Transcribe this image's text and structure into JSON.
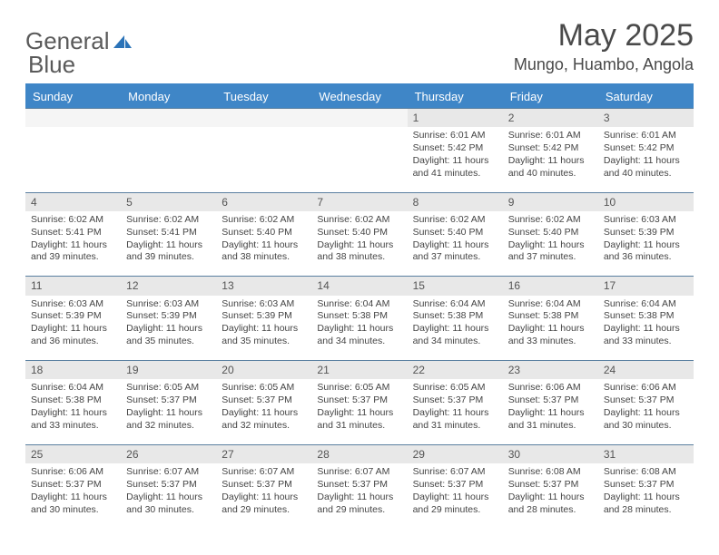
{
  "brand": {
    "word1": "General",
    "word2": "Blue",
    "text_color_gray": "#5a5a5a",
    "text_color_blue": "#2b73b8",
    "icon_color": "#2b73b8"
  },
  "header": {
    "month_title": "May 2025",
    "location": "Mungo, Huambo, Angola",
    "title_color": "#4a4a4a"
  },
  "calendar": {
    "header_bg": "#3f86c7",
    "header_fg": "#ffffff",
    "daynum_bg": "#e8e8e8",
    "cell_border": "#5a7fa0",
    "text_color": "#333333",
    "days": [
      "Sunday",
      "Monday",
      "Tuesday",
      "Wednesday",
      "Thursday",
      "Friday",
      "Saturday"
    ],
    "weeks": [
      {
        "nums": [
          "",
          "",
          "",
          "",
          "1",
          "2",
          "3"
        ],
        "cells": [
          "",
          "",
          "",
          "",
          "Sunrise: 6:01 AM\nSunset: 5:42 PM\nDaylight: 11 hours and 41 minutes.",
          "Sunrise: 6:01 AM\nSunset: 5:42 PM\nDaylight: 11 hours and 40 minutes.",
          "Sunrise: 6:01 AM\nSunset: 5:42 PM\nDaylight: 11 hours and 40 minutes."
        ]
      },
      {
        "nums": [
          "4",
          "5",
          "6",
          "7",
          "8",
          "9",
          "10"
        ],
        "cells": [
          "Sunrise: 6:02 AM\nSunset: 5:41 PM\nDaylight: 11 hours and 39 minutes.",
          "Sunrise: 6:02 AM\nSunset: 5:41 PM\nDaylight: 11 hours and 39 minutes.",
          "Sunrise: 6:02 AM\nSunset: 5:40 PM\nDaylight: 11 hours and 38 minutes.",
          "Sunrise: 6:02 AM\nSunset: 5:40 PM\nDaylight: 11 hours and 38 minutes.",
          "Sunrise: 6:02 AM\nSunset: 5:40 PM\nDaylight: 11 hours and 37 minutes.",
          "Sunrise: 6:02 AM\nSunset: 5:40 PM\nDaylight: 11 hours and 37 minutes.",
          "Sunrise: 6:03 AM\nSunset: 5:39 PM\nDaylight: 11 hours and 36 minutes."
        ]
      },
      {
        "nums": [
          "11",
          "12",
          "13",
          "14",
          "15",
          "16",
          "17"
        ],
        "cells": [
          "Sunrise: 6:03 AM\nSunset: 5:39 PM\nDaylight: 11 hours and 36 minutes.",
          "Sunrise: 6:03 AM\nSunset: 5:39 PM\nDaylight: 11 hours and 35 minutes.",
          "Sunrise: 6:03 AM\nSunset: 5:39 PM\nDaylight: 11 hours and 35 minutes.",
          "Sunrise: 6:04 AM\nSunset: 5:38 PM\nDaylight: 11 hours and 34 minutes.",
          "Sunrise: 6:04 AM\nSunset: 5:38 PM\nDaylight: 11 hours and 34 minutes.",
          "Sunrise: 6:04 AM\nSunset: 5:38 PM\nDaylight: 11 hours and 33 minutes.",
          "Sunrise: 6:04 AM\nSunset: 5:38 PM\nDaylight: 11 hours and 33 minutes."
        ]
      },
      {
        "nums": [
          "18",
          "19",
          "20",
          "21",
          "22",
          "23",
          "24"
        ],
        "cells": [
          "Sunrise: 6:04 AM\nSunset: 5:38 PM\nDaylight: 11 hours and 33 minutes.",
          "Sunrise: 6:05 AM\nSunset: 5:37 PM\nDaylight: 11 hours and 32 minutes.",
          "Sunrise: 6:05 AM\nSunset: 5:37 PM\nDaylight: 11 hours and 32 minutes.",
          "Sunrise: 6:05 AM\nSunset: 5:37 PM\nDaylight: 11 hours and 31 minutes.",
          "Sunrise: 6:05 AM\nSunset: 5:37 PM\nDaylight: 11 hours and 31 minutes.",
          "Sunrise: 6:06 AM\nSunset: 5:37 PM\nDaylight: 11 hours and 31 minutes.",
          "Sunrise: 6:06 AM\nSunset: 5:37 PM\nDaylight: 11 hours and 30 minutes."
        ]
      },
      {
        "nums": [
          "25",
          "26",
          "27",
          "28",
          "29",
          "30",
          "31"
        ],
        "cells": [
          "Sunrise: 6:06 AM\nSunset: 5:37 PM\nDaylight: 11 hours and 30 minutes.",
          "Sunrise: 6:07 AM\nSunset: 5:37 PM\nDaylight: 11 hours and 30 minutes.",
          "Sunrise: 6:07 AM\nSunset: 5:37 PM\nDaylight: 11 hours and 29 minutes.",
          "Sunrise: 6:07 AM\nSunset: 5:37 PM\nDaylight: 11 hours and 29 minutes.",
          "Sunrise: 6:07 AM\nSunset: 5:37 PM\nDaylight: 11 hours and 29 minutes.",
          "Sunrise: 6:08 AM\nSunset: 5:37 PM\nDaylight: 11 hours and 28 minutes.",
          "Sunrise: 6:08 AM\nSunset: 5:37 PM\nDaylight: 11 hours and 28 minutes."
        ]
      }
    ]
  }
}
